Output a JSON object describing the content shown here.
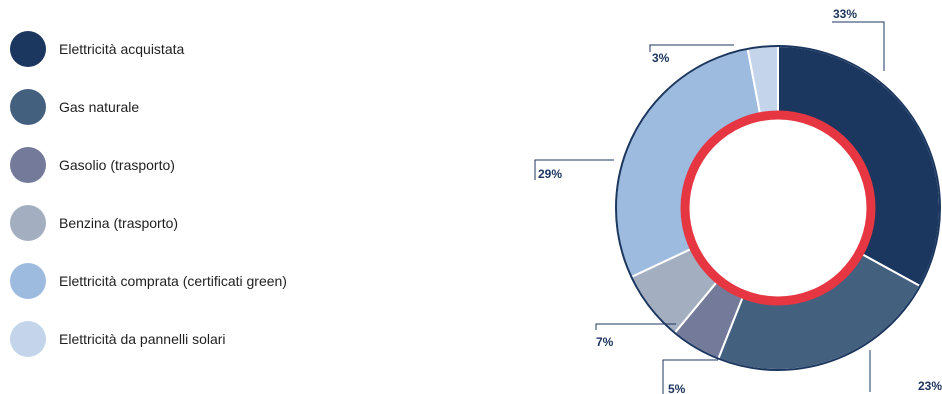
{
  "chart_data": {
    "type": "pie",
    "variant": "donut",
    "categories": [
      "Elettricità acquistata",
      "Gas naturale",
      "Gasolio (trasporto)",
      "Benzina (trasporto)",
      "Elettricità comprata (certificati green)",
      "Elettricità da pannelli solari"
    ],
    "values": [
      33,
      23,
      5,
      7,
      29,
      3
    ],
    "value_labels": [
      "33%",
      "23%",
      "5%",
      "7%",
      "29%",
      "3%"
    ],
    "colors": [
      "#1b365f",
      "#44607f",
      "#747a99",
      "#a3aec0",
      "#9dbadf",
      "#c4d5eb"
    ],
    "center_ring_color": "#e63642",
    "legend_position": "left"
  }
}
